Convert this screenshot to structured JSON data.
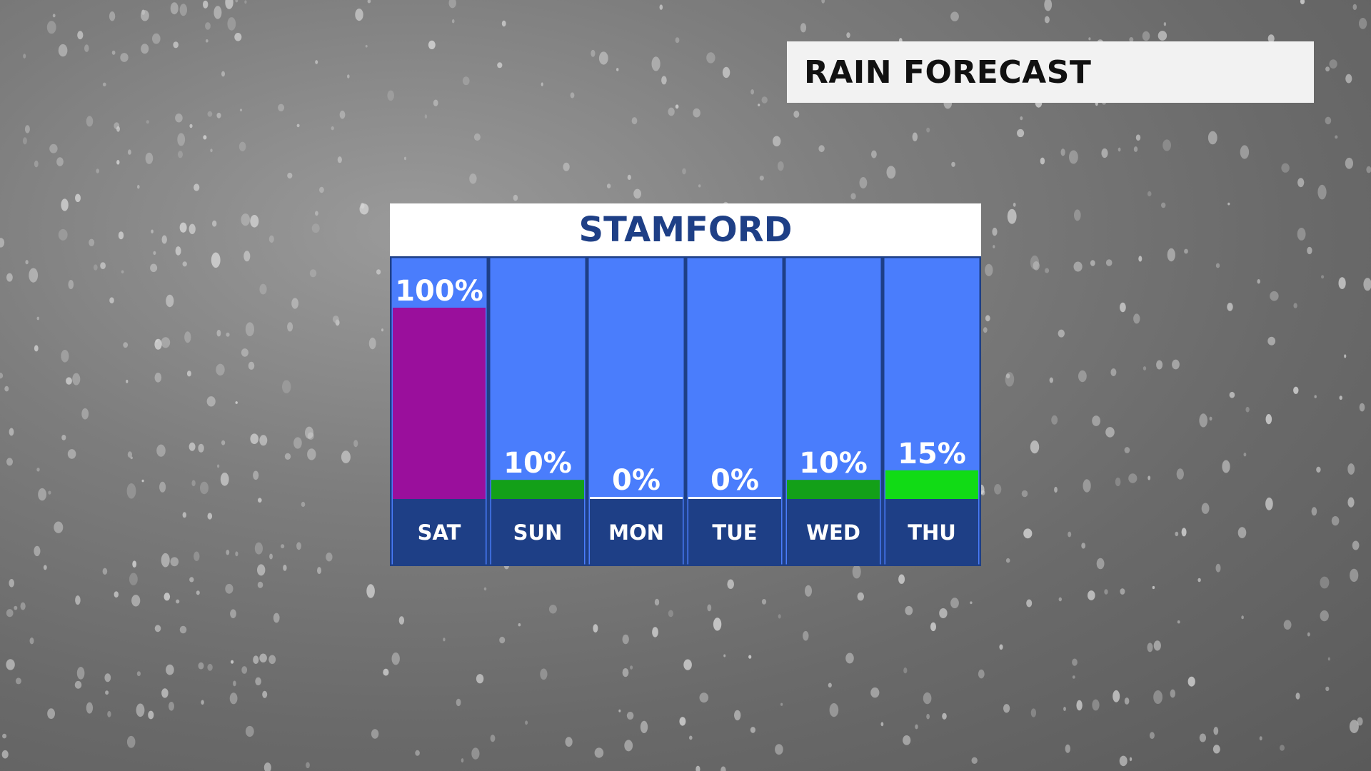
{
  "header": {
    "title": "RAIN FORECAST"
  },
  "panel": {
    "city": "STAMFORD"
  },
  "colors": {
    "column_bg": "#4a7dfc",
    "column_border": "#1e3f86",
    "label_bg": "#1e3f86",
    "header_text": "#1e3f86",
    "bar_100": "#9a0f9c",
    "bar_low": "#13a018",
    "bar_15": "#11db15",
    "bar_0": "#ffffff"
  },
  "chart_data": {
    "type": "bar",
    "title": "STAMFORD",
    "categories": [
      "SAT",
      "SUN",
      "MON",
      "TUE",
      "WED",
      "THU"
    ],
    "values": [
      100,
      10,
      0,
      0,
      10,
      15
    ],
    "value_labels": [
      "100%",
      "10%",
      "0%",
      "0%",
      "10%",
      "15%"
    ],
    "bar_colors": [
      "#9a0f9c",
      "#13a018",
      "#ffffff",
      "#ffffff",
      "#13a018",
      "#11db15"
    ],
    "ylim": [
      0,
      100
    ],
    "unit": "%"
  }
}
